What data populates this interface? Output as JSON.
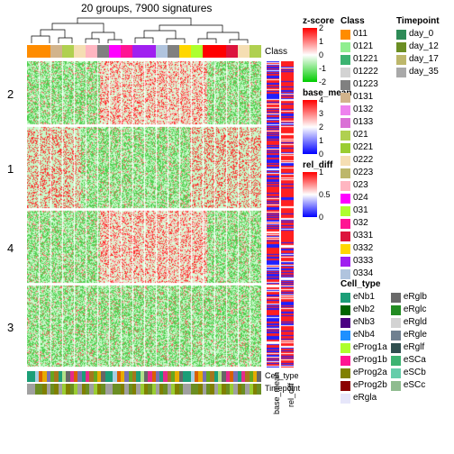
{
  "title": "20 groups, 7900 signatures",
  "row_groups": [
    "2",
    "1",
    "4",
    "3"
  ],
  "row_group_heights": [
    70,
    90,
    80,
    90
  ],
  "col_class_colors": [
    "#ff8c00",
    "#ff8c00",
    "#d2b48c",
    "#b0d050",
    "#f5deb3",
    "#ffb6c1",
    "#808080",
    "#ff00ff",
    "#ff1493",
    "#a020f0",
    "#a020f0",
    "#b0c4de",
    "#808080",
    "#ffd700",
    "#adff2f",
    "#ff0000",
    "#ff0000",
    "#dc143c",
    "#f5deb3",
    "#b0d050"
  ],
  "bottom_annotations": [
    {
      "name": "Cell_type",
      "colors": [
        "#1b9e77",
        "#1b9e77",
        "#a6cee3",
        "#d95f02",
        "#e6ab02",
        "#7570b3",
        "#66a61e",
        "#a6761d",
        "#1b9e77",
        "#b2df8a",
        "#666666",
        "#e7298a",
        "#d95f02",
        "#7570b3",
        "#1b9e77",
        "#e7298a",
        "#a6761d",
        "#66a61e",
        "#e6ab02",
        "#666666"
      ]
    },
    {
      "name": "Timepoint",
      "colors": [
        "#a0a0a0",
        "#a0a0a0",
        "#6b8e23",
        "#6b8e23",
        "#808000",
        "#a0a0a0",
        "#6b8e23",
        "#808000",
        "#a0a0a0",
        "#9acd32",
        "#808000",
        "#6b8e23",
        "#9acd32",
        "#a0a0a0",
        "#808000",
        "#6b8e23",
        "#a0a0a0",
        "#9acd32",
        "#808000",
        "#6b8e23"
      ]
    }
  ],
  "side_annotations": [
    {
      "name": "base_mean",
      "label": "base_mean"
    },
    {
      "name": "rel_diff",
      "label": "rel_diff"
    }
  ],
  "legends": {
    "zscore": {
      "title": "z-score",
      "gradient": [
        "#ff0000",
        "#ffffff",
        "#00cc00"
      ],
      "ticks": [
        "2",
        "1",
        "0",
        "-1",
        "-2"
      ]
    },
    "base_mean": {
      "title": "base_mean",
      "gradient": [
        "#ff0000",
        "#ffffff",
        "#0000ff"
      ],
      "ticks": [
        "4",
        "3",
        "2",
        "1",
        "0"
      ]
    },
    "rel_diff": {
      "title": "rel_diff",
      "gradient": [
        "#ff0000",
        "#ffffff",
        "#0000ff"
      ],
      "ticks": [
        "1",
        "0.5",
        "0"
      ]
    },
    "class": {
      "title": "Class",
      "items": [
        {
          "label": "011",
          "color": "#ff8c00"
        },
        {
          "label": "0121",
          "color": "#90ee90"
        },
        {
          "label": "01221",
          "color": "#3cb371"
        },
        {
          "label": "01222",
          "color": "#d3d3d3"
        },
        {
          "label": "01223",
          "color": "#808080"
        },
        {
          "label": "0131",
          "color": "#d2b48c"
        },
        {
          "label": "0132",
          "color": "#ee82ee"
        },
        {
          "label": "0133",
          "color": "#da70d6"
        },
        {
          "label": "021",
          "color": "#b0d050"
        },
        {
          "label": "0221",
          "color": "#9acd32"
        },
        {
          "label": "0222",
          "color": "#f5deb3"
        },
        {
          "label": "0223",
          "color": "#bdb76b"
        },
        {
          "label": "023",
          "color": "#ffb6c1"
        },
        {
          "label": "024",
          "color": "#ff00ff"
        },
        {
          "label": "031",
          "color": "#adff2f"
        },
        {
          "label": "032",
          "color": "#ff1493"
        },
        {
          "label": "0331",
          "color": "#dc143c"
        },
        {
          "label": "0332",
          "color": "#ffd700"
        },
        {
          "label": "0333",
          "color": "#a020f0"
        },
        {
          "label": "0334",
          "color": "#b0c4de"
        }
      ]
    },
    "timepoint": {
      "title": "Timepoint",
      "items": [
        {
          "label": "day_0",
          "color": "#2e8b57"
        },
        {
          "label": "day_12",
          "color": "#6b8e23"
        },
        {
          "label": "day_17",
          "color": "#bdb76b"
        },
        {
          "label": "day_35",
          "color": "#a9a9a9"
        }
      ]
    },
    "cell_type": {
      "title": "Cell_type",
      "items": [
        {
          "label": "eNb1",
          "color": "#1b9e77"
        },
        {
          "label": "eNb2",
          "color": "#006400"
        },
        {
          "label": "eNb3",
          "color": "#4b0082"
        },
        {
          "label": "eNb4",
          "color": "#1e90ff"
        },
        {
          "label": "eProg1a",
          "color": "#adff2f"
        },
        {
          "label": "eProg1b",
          "color": "#ff1493"
        },
        {
          "label": "eProg2a",
          "color": "#808000"
        },
        {
          "label": "eProg2b",
          "color": "#8b0000"
        },
        {
          "label": "eRgla",
          "color": "#e6e6fa"
        },
        {
          "label": "eRglb",
          "color": "#696969"
        },
        {
          "label": "eRglc",
          "color": "#228b22"
        },
        {
          "label": "eRgld",
          "color": "#d3d3d3"
        },
        {
          "label": "eRgle",
          "color": "#708090"
        },
        {
          "label": "eRglf",
          "color": "#2f4f4f"
        },
        {
          "label": "eSCa",
          "color": "#3cb371"
        },
        {
          "label": "eSCb",
          "color": "#66cdaa"
        },
        {
          "label": "eSCc",
          "color": "#8fbc8f"
        }
      ]
    }
  },
  "class_annot_label": "Class"
}
